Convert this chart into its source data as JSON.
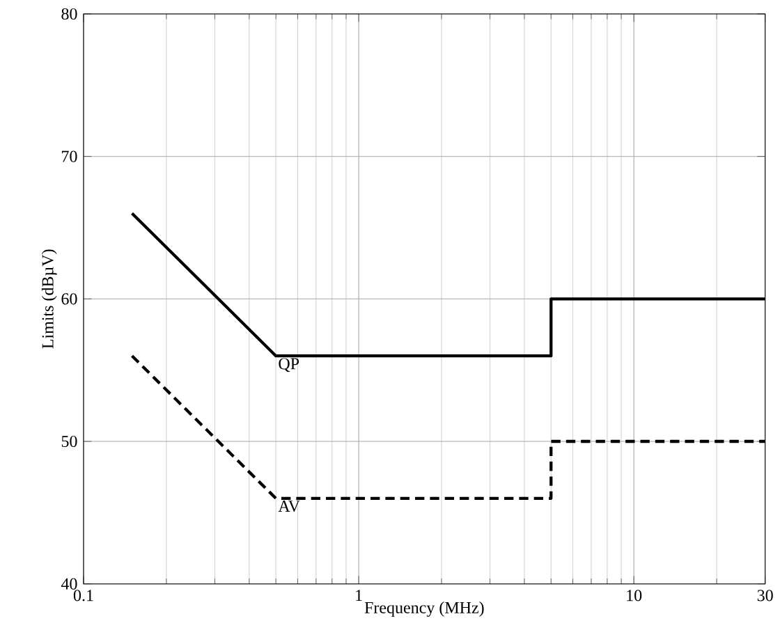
{
  "chart_data": {
    "type": "line",
    "xlabel": "Frequency (MHz)",
    "ylabel": "Limits (dBµV)",
    "log": "x",
    "grid": true,
    "marker": "none",
    "xlim": [
      0.1,
      30
    ],
    "xticks": [
      0.1,
      1,
      10,
      30
    ],
    "ylim": [
      40,
      80
    ],
    "yticks": [
      40,
      50,
      60,
      70,
      80
    ],
    "series": [
      {
        "color": "#000000",
        "line_style": "solid",
        "x": [
          0.15,
          0.5,
          5,
          5,
          30
        ],
        "values": [
          66,
          56,
          56,
          60,
          60
        ]
      },
      {
        "color": "#000000",
        "line_style": "dashed",
        "x": [
          0.15,
          0.5,
          5,
          5,
          30
        ],
        "values": [
          56,
          46,
          46,
          50,
          50
        ]
      }
    ],
    "annotations": [
      {
        "text": "QP",
        "x": 0.5,
        "y": 56
      },
      {
        "text": "AV",
        "x": 0.5,
        "y": 46
      }
    ]
  }
}
